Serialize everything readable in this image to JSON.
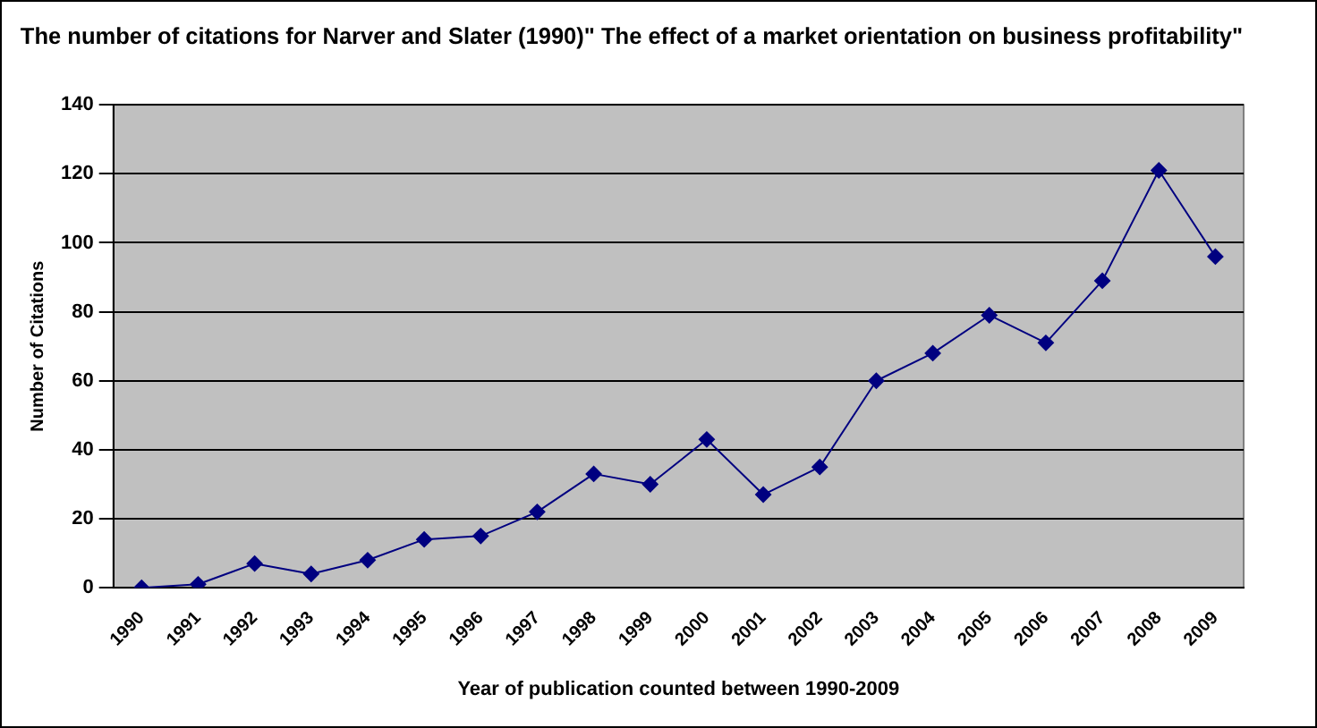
{
  "chart_data": {
    "type": "line",
    "title": "The number of citations for Narver and Slater (1990)\" The effect of a market orientation on business profitability\"",
    "xlabel": "Year of publication counted between 1990-2009",
    "ylabel": "Number of Citations",
    "categories": [
      "1990",
      "1991",
      "1992",
      "1993",
      "1994",
      "1995",
      "1996",
      "1997",
      "1998",
      "1999",
      "2000",
      "2001",
      "2002",
      "2003",
      "2004",
      "2005",
      "2006",
      "2007",
      "2008",
      "2009"
    ],
    "series": [
      {
        "color": "#000080",
        "values": [
          0,
          1,
          7,
          4,
          8,
          14,
          15,
          22,
          33,
          30,
          43,
          27,
          35,
          60,
          68,
          79,
          71,
          89,
          121,
          96
        ]
      }
    ],
    "ylim": [
      0,
      140
    ],
    "yticks": [
      0,
      20,
      40,
      60,
      80,
      100,
      120,
      140
    ],
    "grid": "y",
    "marker": "diamond",
    "line_style": "solid"
  }
}
